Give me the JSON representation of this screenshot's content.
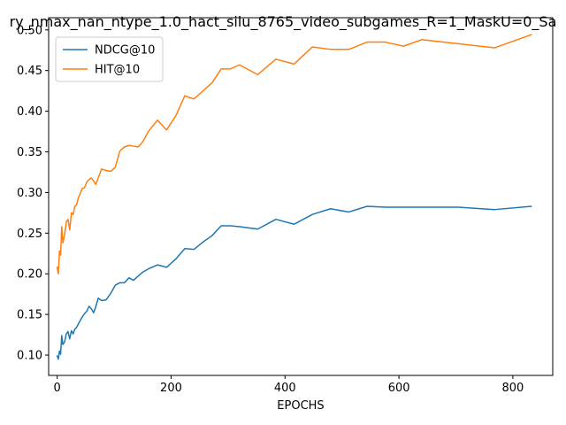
{
  "chart_data": {
    "type": "line",
    "title": "ry_nmax_nan_ntype_1.0_hact_silu_8765_video_subgames_R=1_MaskU=0_Sa",
    "xlabel": "EPOCHS",
    "ylabel": "",
    "xlim": [
      -15,
      870
    ],
    "ylim": [
      0.075,
      0.515
    ],
    "xticks": [
      0,
      200,
      400,
      600,
      800
    ],
    "yticks": [
      0.1,
      0.15,
      0.2,
      0.25,
      0.3,
      0.35,
      0.4,
      0.45,
      0.5
    ],
    "xtick_labels": [
      "0",
      "200",
      "400",
      "600",
      "800"
    ],
    "ytick_labels": [
      "0.10",
      "0.15",
      "0.20",
      "0.25",
      "0.30",
      "0.35",
      "0.40",
      "0.45",
      "0.50"
    ],
    "legend_position": "top-left",
    "grid": false,
    "series": [
      {
        "name": "NDCG@10",
        "color": "#1f77b4",
        "x": [
          0,
          2,
          4,
          6,
          8,
          10,
          13,
          16,
          19,
          22,
          25,
          28,
          31,
          34,
          37,
          40,
          44,
          48,
          52,
          56,
          60,
          64,
          68,
          72,
          78,
          86,
          94,
          102,
          110,
          118,
          126,
          134,
          142,
          150,
          160,
          176,
          192,
          208,
          224,
          240,
          256,
          272,
          288,
          304,
          320,
          352,
          384,
          416,
          448,
          480,
          512,
          544,
          576,
          608,
          640,
          704,
          768,
          832
        ],
        "y": [
          0.099,
          0.095,
          0.105,
          0.101,
          0.124,
          0.113,
          0.116,
          0.126,
          0.129,
          0.12,
          0.13,
          0.126,
          0.132,
          0.134,
          0.138,
          0.142,
          0.147,
          0.151,
          0.154,
          0.16,
          0.157,
          0.152,
          0.16,
          0.17,
          0.167,
          0.168,
          0.176,
          0.186,
          0.189,
          0.189,
          0.195,
          0.192,
          0.197,
          0.202,
          0.206,
          0.211,
          0.208,
          0.218,
          0.231,
          0.23,
          0.239,
          0.247,
          0.259,
          0.259,
          0.258,
          0.255,
          0.267,
          0.261,
          0.273,
          0.28,
          0.276,
          0.283,
          0.282,
          0.282,
          0.282,
          0.282,
          0.279,
          0.283
        ]
      },
      {
        "name": "HIT@10",
        "color": "#ff7f0e",
        "x": [
          0,
          2,
          4,
          6,
          8,
          10,
          13,
          16,
          19,
          22,
          25,
          28,
          31,
          34,
          37,
          40,
          44,
          48,
          52,
          56,
          60,
          64,
          68,
          72,
          78,
          86,
          94,
          102,
          110,
          118,
          126,
          134,
          142,
          150,
          160,
          176,
          192,
          208,
          224,
          240,
          256,
          272,
          288,
          304,
          320,
          352,
          384,
          416,
          448,
          480,
          512,
          544,
          576,
          608,
          640,
          704,
          768,
          832
        ],
        "y": [
          0.208,
          0.2,
          0.228,
          0.223,
          0.258,
          0.238,
          0.248,
          0.264,
          0.267,
          0.254,
          0.275,
          0.273,
          0.283,
          0.285,
          0.293,
          0.298,
          0.305,
          0.306,
          0.313,
          0.316,
          0.318,
          0.314,
          0.31,
          0.318,
          0.329,
          0.327,
          0.326,
          0.331,
          0.351,
          0.356,
          0.358,
          0.357,
          0.356,
          0.362,
          0.375,
          0.389,
          0.377,
          0.394,
          0.419,
          0.415,
          0.425,
          0.435,
          0.452,
          0.452,
          0.457,
          0.445,
          0.464,
          0.458,
          0.479,
          0.476,
          0.476,
          0.485,
          0.485,
          0.48,
          0.488,
          0.483,
          0.478,
          0.494
        ]
      }
    ]
  }
}
